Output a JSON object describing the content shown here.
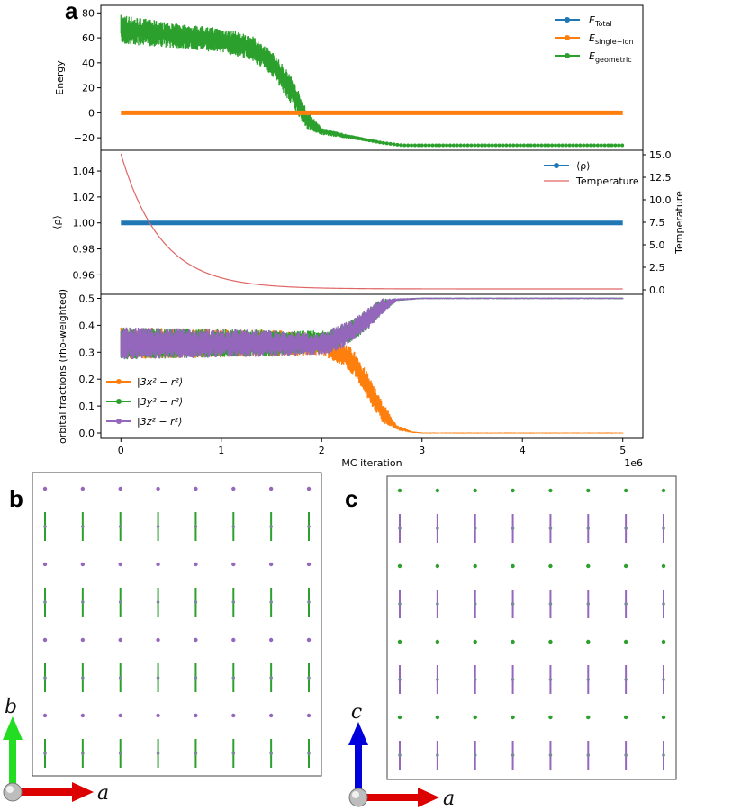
{
  "colors": {
    "total": "#1f77b4",
    "single_ion": "#ff7f0e",
    "geometric": "#2ca02c",
    "temperature": "#e06666",
    "x2": "#ff7f0e",
    "y2": "#2ca02c",
    "z2": "#9467bd",
    "arrow_a": "#dd0000",
    "arrow_b": "#22dd22",
    "arrow_c": "#0000dd"
  },
  "panels": {
    "a": "a",
    "b": "b",
    "c": "c"
  },
  "chart_data": [
    {
      "id": "energy",
      "type": "line",
      "ylabel": "Energy",
      "xlim": [
        -0.2,
        5.2
      ],
      "ylim": [
        -30,
        86
      ],
      "yticks": [
        "−20",
        "0",
        "20",
        "40",
        "60",
        "80"
      ],
      "ytick_values": [
        -20,
        0,
        20,
        40,
        60,
        80
      ],
      "legend": "top-right",
      "series": [
        {
          "name": "E_Total",
          "label_base": "E",
          "label_sub": "Total",
          "color_key": "total"
        },
        {
          "name": "E_single-ion",
          "label_base": "E",
          "label_sub": "single−ion",
          "color_key": "single_ion",
          "x": [
            0,
            5
          ],
          "y": [
            0,
            0
          ]
        },
        {
          "name": "E_geometric",
          "label_base": "E",
          "label_sub": "geometric",
          "color_key": "geometric",
          "x": [
            0,
            0.5,
            1.0,
            1.3,
            1.5,
            1.7,
            1.85,
            2.0,
            2.2,
            2.4,
            2.6,
            2.8,
            3.0,
            5.0
          ],
          "y": [
            67,
            62,
            58,
            52,
            40,
            18,
            -5,
            -15,
            -18,
            -21,
            -24,
            -26,
            -26,
            -26
          ],
          "noise": [
            12,
            10,
            10,
            10,
            10,
            12,
            8,
            3,
            2,
            1.5,
            1,
            0.5,
            0.3,
            0.3
          ]
        }
      ]
    },
    {
      "id": "rho",
      "type": "line",
      "ylabel": "⟨ρ⟩",
      "y2label": "Temperature",
      "xlim": [
        -0.2,
        5.2
      ],
      "ylim": [
        0.945,
        1.056
      ],
      "yticks": [
        "0.96",
        "0.98",
        "1.00",
        "1.02",
        "1.04"
      ],
      "ytick_values": [
        0.96,
        0.98,
        1.0,
        1.02,
        1.04
      ],
      "y2lim": [
        -0.5,
        15.5
      ],
      "y2ticks": [
        "0.0",
        "2.5",
        "5.0",
        "7.5",
        "10.0",
        "12.5",
        "15.0"
      ],
      "y2tick_values": [
        0,
        2.5,
        5,
        7.5,
        10,
        12.5,
        15
      ],
      "legend": "top-right",
      "series": [
        {
          "name": "⟨ρ⟩",
          "color_key": "total",
          "x": [
            0,
            5
          ],
          "y": [
            1.0,
            1.0
          ]
        },
        {
          "name": "Temperature",
          "color_key": "temperature",
          "axis": "right",
          "x": [
            0,
            0.1,
            0.2,
            0.3,
            0.4,
            0.5,
            0.7,
            1.0,
            1.5,
            2.0,
            5.0
          ],
          "y": [
            15.0,
            11.8,
            9.2,
            7.1,
            5.5,
            4.2,
            2.5,
            1.2,
            0.4,
            0.15,
            0.1
          ]
        }
      ]
    },
    {
      "id": "orbital",
      "type": "line",
      "ylabel": "orbital fractions (rho-weighted)",
      "xlabel": "MC iteration",
      "x_offset_label": "1e6",
      "xlim": [
        -0.2,
        5.2
      ],
      "xticks": [
        "0",
        "1",
        "2",
        "3",
        "4",
        "5"
      ],
      "xtick_values": [
        0,
        1,
        2,
        3,
        4,
        5
      ],
      "ylim": [
        -0.02,
        0.515
      ],
      "yticks": [
        "0.0",
        "0.1",
        "0.2",
        "0.3",
        "0.4",
        "0.5"
      ],
      "ytick_values": [
        0,
        0.1,
        0.2,
        0.3,
        0.4,
        0.5
      ],
      "legend": "bottom-left",
      "series": [
        {
          "name": "|3x²−r²⟩",
          "label_text": "|3x² − r²⟩",
          "color_key": "x2",
          "x": [
            0,
            1.5,
            2.0,
            2.15,
            2.3,
            2.45,
            2.6,
            2.75,
            2.9,
            3.0,
            5.0
          ],
          "y": [
            0.333,
            0.333,
            0.33,
            0.3,
            0.27,
            0.18,
            0.08,
            0.02,
            0.003,
            0.0,
            0.0
          ],
          "noise": [
            0.06,
            0.05,
            0.04,
            0.04,
            0.05,
            0.05,
            0.04,
            0.01,
            0.003,
            0.002,
            0.002
          ]
        },
        {
          "name": "|3y²−r²⟩",
          "label_text": "|3y² − r²⟩",
          "color_key": "y2",
          "x": [
            0,
            1.5,
            2.0,
            2.15,
            2.3,
            2.45,
            2.6,
            2.75,
            3.0,
            5.0
          ],
          "y": [
            0.333,
            0.333,
            0.34,
            0.35,
            0.38,
            0.42,
            0.47,
            0.495,
            0.5,
            0.5
          ],
          "noise": [
            0.06,
            0.05,
            0.04,
            0.04,
            0.04,
            0.04,
            0.03,
            0.005,
            0.003,
            0.003
          ]
        },
        {
          "name": "|3z²−r²⟩",
          "label_text": "|3z² − r²⟩",
          "color_key": "z2",
          "x": [
            0,
            1.5,
            2.0,
            2.15,
            2.3,
            2.45,
            2.6,
            2.75,
            3.0,
            5.0
          ],
          "y": [
            0.333,
            0.333,
            0.33,
            0.35,
            0.38,
            0.42,
            0.47,
            0.495,
            0.5,
            0.5
          ],
          "noise": [
            0.06,
            0.05,
            0.04,
            0.05,
            0.04,
            0.04,
            0.03,
            0.005,
            0.003,
            0.003
          ]
        }
      ]
    }
  ],
  "lattice_b": {
    "rows": 8,
    "cols": 8,
    "dot_color_key": "z2",
    "rod_color_key": "y2",
    "axes": {
      "horizontal": "a",
      "vertical": "b",
      "vertical_color_key": "arrow_b"
    }
  },
  "lattice_c": {
    "rows": 8,
    "cols": 8,
    "dot_color_key": "y2",
    "rod_color_key": "z2",
    "axes": {
      "horizontal": "a",
      "vertical": "c",
      "vertical_color_key": "arrow_c"
    }
  }
}
